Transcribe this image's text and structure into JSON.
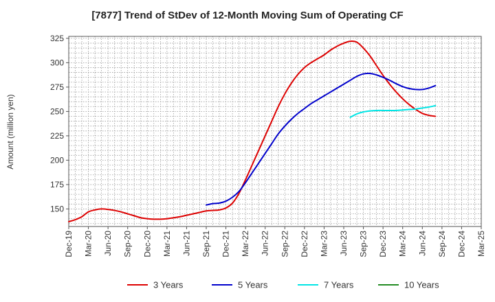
{
  "chart_data": {
    "type": "line",
    "title": "[7877]  Trend of StDev of 12-Month Moving Sum of Operating CF",
    "ylabel": "Amount (million yen)",
    "xlabel": "",
    "ylim": [
      132,
      327
    ],
    "yticks": [
      150,
      175,
      200,
      225,
      250,
      275,
      300,
      325
    ],
    "x_start": "Dec-19",
    "x_ticks": [
      "Dec-19",
      "Mar-20",
      "Jun-20",
      "Sep-20",
      "Dec-20",
      "Mar-21",
      "Jun-21",
      "Sep-21",
      "Dec-21",
      "Mar-22",
      "Jun-22",
      "Sep-22",
      "Dec-22",
      "Mar-23",
      "Jun-23",
      "Sep-23",
      "Dec-23",
      "Mar-24",
      "Jun-24",
      "Sep-24",
      "Dec-24",
      "Mar-25"
    ],
    "x_end": "Mar-25",
    "grid": true,
    "legend_position": "bottom",
    "series": [
      {
        "name": "3 Years",
        "color": "#dd0000",
        "points": [
          [
            "Dec-19",
            137
          ],
          [
            "Jan-20",
            139
          ],
          [
            "Feb-20",
            142
          ],
          [
            "Mar-20",
            147
          ],
          [
            "Apr-20",
            149
          ],
          [
            "May-20",
            150
          ],
          [
            "Jun-20",
            149.5
          ],
          [
            "Jul-20",
            148.5
          ],
          [
            "Aug-20",
            147
          ],
          [
            "Sep-20",
            145
          ],
          [
            "Oct-20",
            143
          ],
          [
            "Nov-20",
            141
          ],
          [
            "Dec-20",
            140
          ],
          [
            "Jan-21",
            139.5
          ],
          [
            "Feb-21",
            139.5
          ],
          [
            "Mar-21",
            140
          ],
          [
            "Apr-21",
            141
          ],
          [
            "May-21",
            142
          ],
          [
            "Jun-21",
            143.5
          ],
          [
            "Jul-21",
            145
          ],
          [
            "Aug-21",
            146.5
          ],
          [
            "Sep-21",
            148
          ],
          [
            "Oct-21",
            148.5
          ],
          [
            "Nov-21",
            149
          ],
          [
            "Dec-21",
            151
          ],
          [
            "Jan-22",
            156
          ],
          [
            "Feb-22",
            166
          ],
          [
            "Mar-22",
            180
          ],
          [
            "Apr-22",
            195
          ],
          [
            "May-22",
            210
          ],
          [
            "Jun-22",
            225
          ],
          [
            "Jul-22",
            240
          ],
          [
            "Aug-22",
            255
          ],
          [
            "Sep-22",
            268
          ],
          [
            "Oct-22",
            279
          ],
          [
            "Nov-22",
            288
          ],
          [
            "Dec-22",
            295
          ],
          [
            "Jan-23",
            300
          ],
          [
            "Feb-23",
            304
          ],
          [
            "Mar-23",
            308
          ],
          [
            "Apr-23",
            313
          ],
          [
            "May-23",
            317
          ],
          [
            "Jun-23",
            320
          ],
          [
            "Jul-23",
            322
          ],
          [
            "Aug-23",
            321
          ],
          [
            "Sep-23",
            315
          ],
          [
            "Oct-23",
            307
          ],
          [
            "Nov-23",
            297
          ],
          [
            "Dec-23",
            287
          ],
          [
            "Jan-24",
            278
          ],
          [
            "Feb-24",
            270
          ],
          [
            "Mar-24",
            263
          ],
          [
            "Apr-24",
            257
          ],
          [
            "May-24",
            252
          ],
          [
            "Jun-24",
            248
          ],
          [
            "Jul-24",
            246
          ],
          [
            "Aug-24",
            245
          ]
        ]
      },
      {
        "name": "5 Years",
        "color": "#0000cc",
        "points": [
          [
            "Sep-21",
            154
          ],
          [
            "Oct-21",
            155.5
          ],
          [
            "Nov-21",
            156
          ],
          [
            "Dec-21",
            158
          ],
          [
            "Jan-22",
            162
          ],
          [
            "Feb-22",
            168
          ],
          [
            "Mar-22",
            177
          ],
          [
            "Apr-22",
            187
          ],
          [
            "May-22",
            197
          ],
          [
            "Jun-22",
            207
          ],
          [
            "Jul-22",
            217
          ],
          [
            "Aug-22",
            227
          ],
          [
            "Sep-22",
            235
          ],
          [
            "Oct-22",
            242
          ],
          [
            "Nov-22",
            248
          ],
          [
            "Dec-22",
            253
          ],
          [
            "Jan-23",
            258
          ],
          [
            "Feb-23",
            262
          ],
          [
            "Mar-23",
            266
          ],
          [
            "Apr-23",
            270
          ],
          [
            "May-23",
            274
          ],
          [
            "Jun-23",
            278
          ],
          [
            "Jul-23",
            282
          ],
          [
            "Aug-23",
            286
          ],
          [
            "Sep-23",
            288.5
          ],
          [
            "Oct-23",
            289
          ],
          [
            "Nov-23",
            287.5
          ],
          [
            "Dec-23",
            285
          ],
          [
            "Jan-24",
            282
          ],
          [
            "Feb-24",
            278.5
          ],
          [
            "Mar-24",
            275.5
          ],
          [
            "Apr-24",
            273.5
          ],
          [
            "May-24",
            272.5
          ],
          [
            "Jun-24",
            272.5
          ],
          [
            "Jul-24",
            274
          ],
          [
            "Aug-24",
            276.5
          ]
        ]
      },
      {
        "name": "7 Years",
        "color": "#00e5e5",
        "points": [
          [
            "Jul-23",
            244
          ],
          [
            "Aug-23",
            247.5
          ],
          [
            "Sep-23",
            249.5
          ],
          [
            "Oct-23",
            250.5
          ],
          [
            "Nov-23",
            251
          ],
          [
            "Dec-23",
            251
          ],
          [
            "Jan-24",
            251
          ],
          [
            "Feb-24",
            251
          ],
          [
            "Mar-24",
            251.5
          ],
          [
            "Apr-24",
            252
          ],
          [
            "May-24",
            252.5
          ],
          [
            "Jun-24",
            253.5
          ],
          [
            "Jul-24",
            254.5
          ],
          [
            "Aug-24",
            256
          ]
        ]
      },
      {
        "name": "10 Years",
        "color": "#228b22",
        "points": []
      }
    ]
  }
}
